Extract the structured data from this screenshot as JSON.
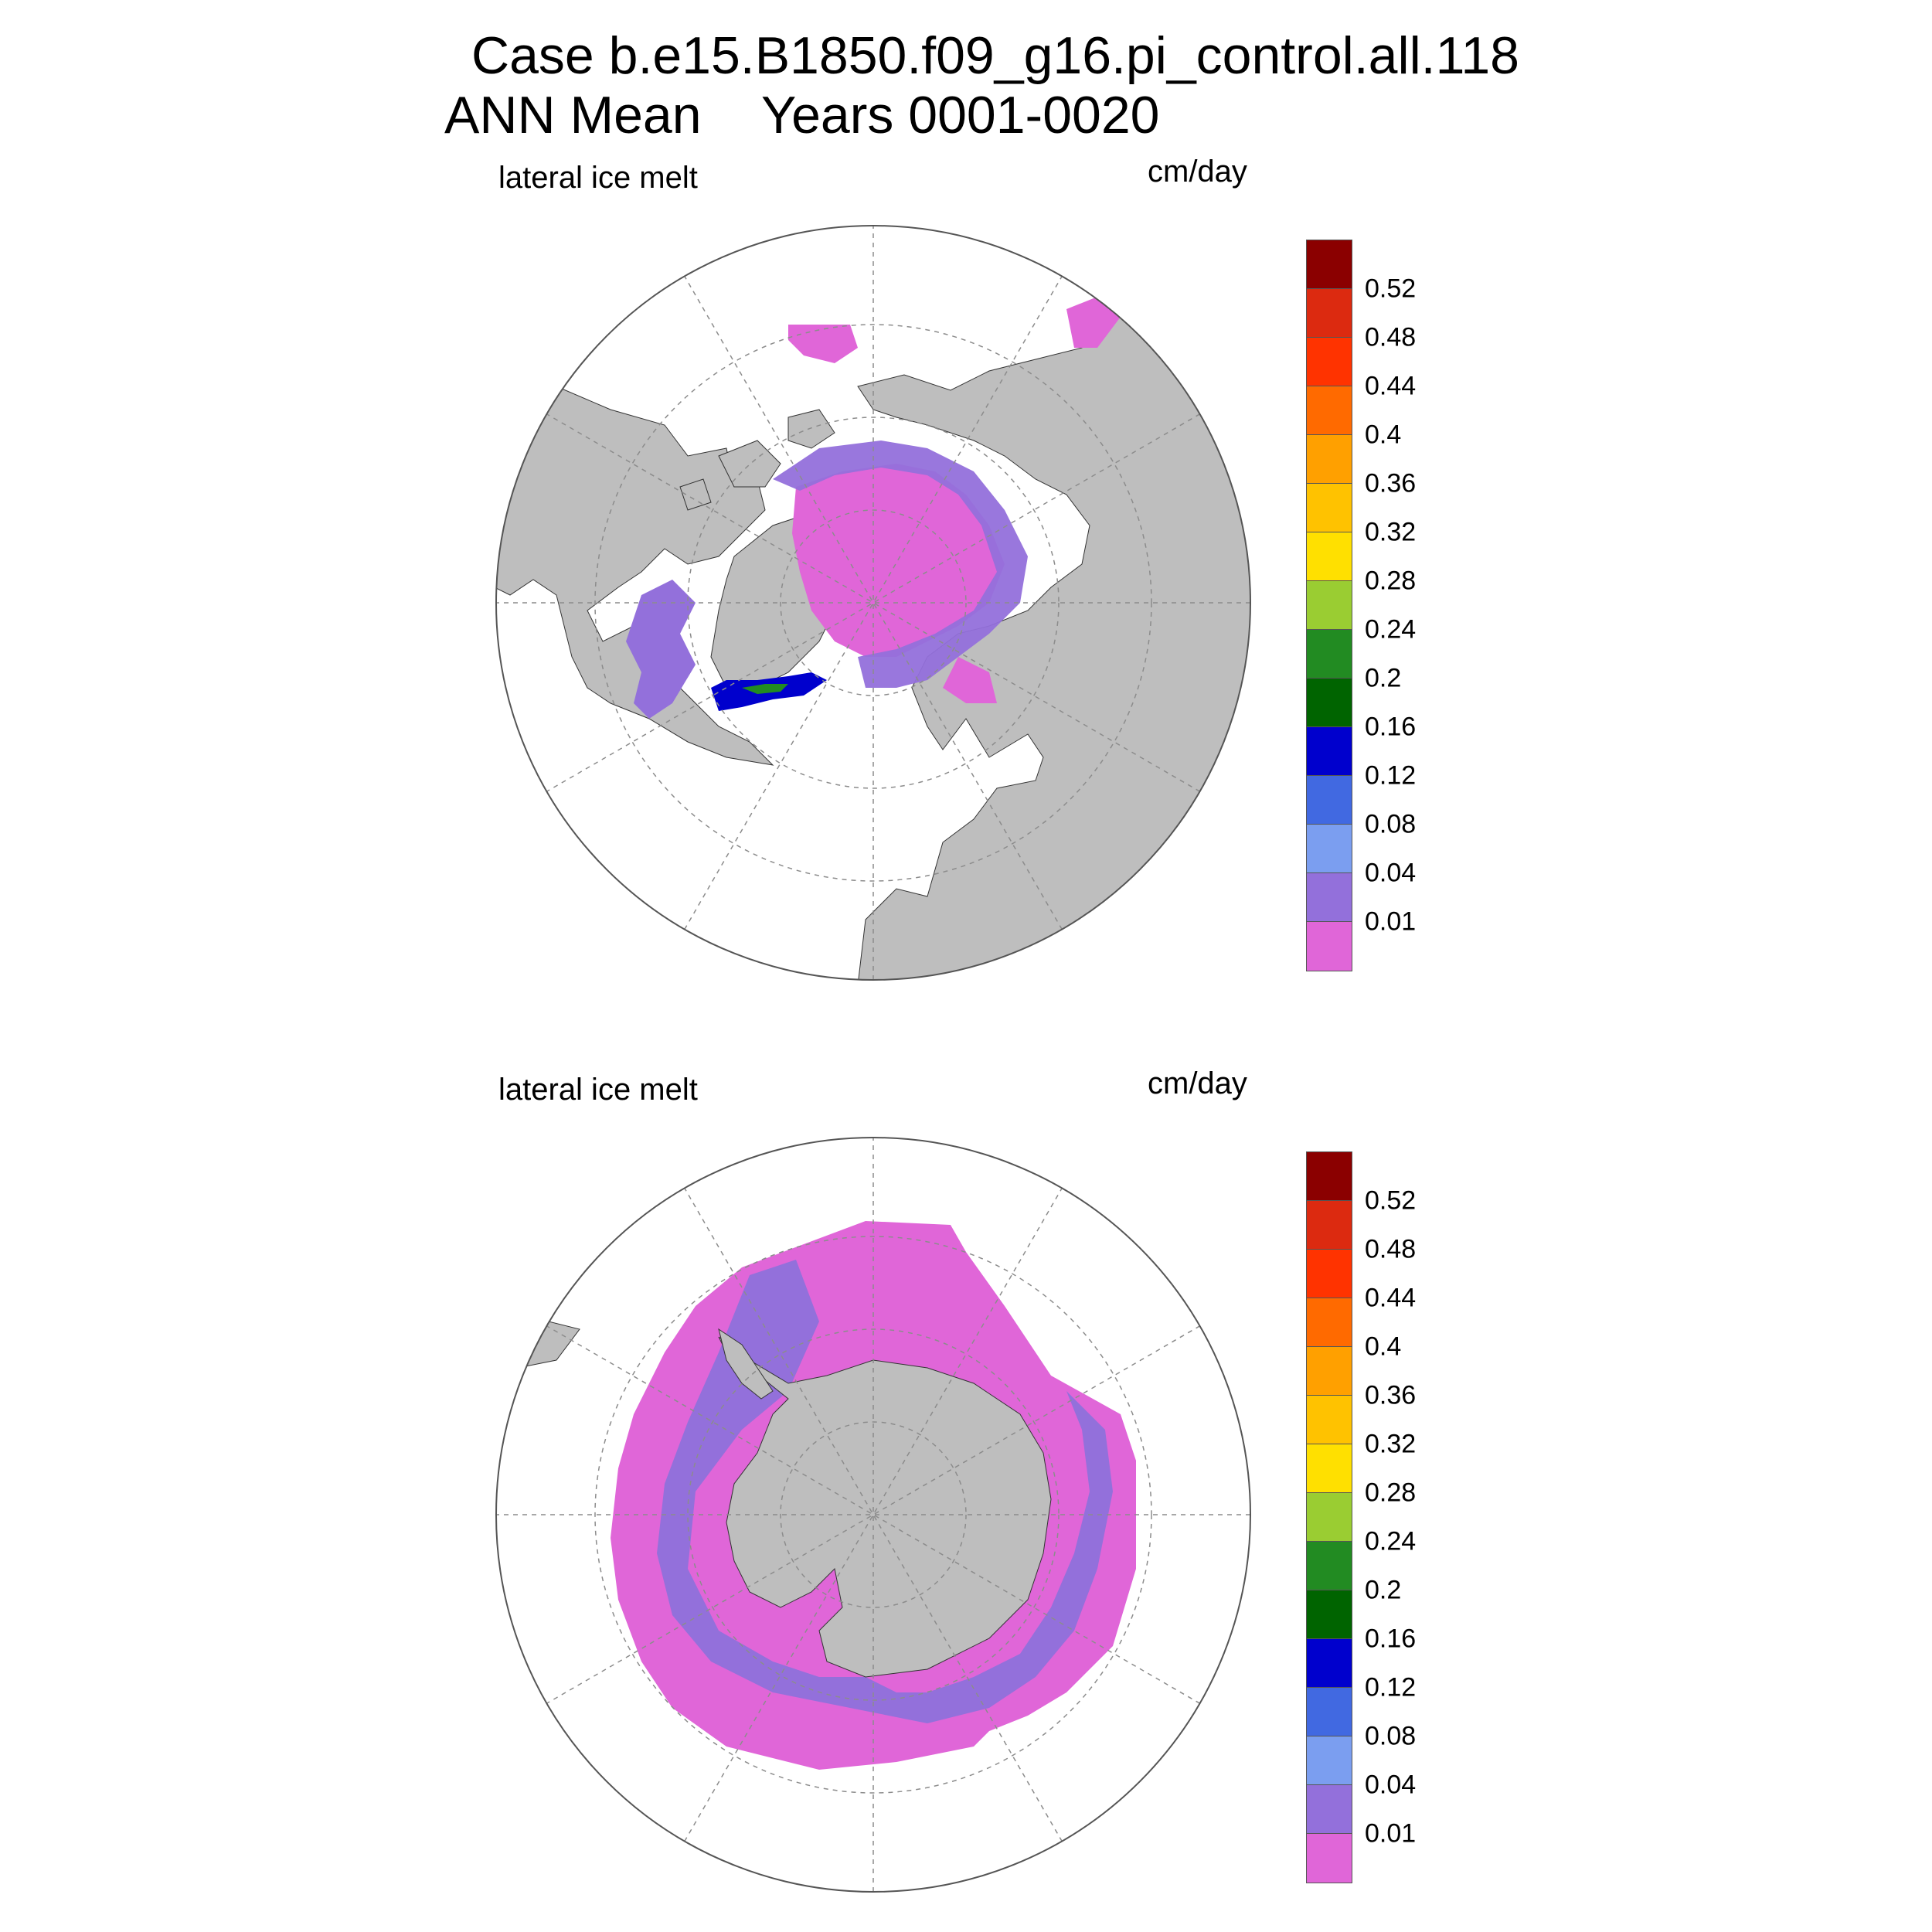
{
  "title": {
    "line1": "Case b.e15.B1850.f09_g16.pi_control.all.118",
    "line2_left": "ANN Mean",
    "line2_right": "Years 0001-0020"
  },
  "colors": {
    "land": "#bebebe",
    "ocean": "#ffffff",
    "grid": "#8c8c8c",
    "bins": [
      "#e066d8",
      "#9370db",
      "#7b9ef0",
      "#4169e1",
      "#0000cd",
      "#006400",
      "#228b22",
      "#9acd32",
      "#ffe000",
      "#ffc200",
      "#ffa000",
      "#ff6a00",
      "#ff3300",
      "#dc2a10",
      "#8b0000"
    ]
  },
  "colorbar": {
    "levels": [
      "0.52",
      "0.48",
      "0.44",
      "0.4",
      "0.36",
      "0.32",
      "0.28",
      "0.24",
      "0.2",
      "0.16",
      "0.12",
      "0.08",
      "0.04",
      "0.01"
    ]
  },
  "panels": [
    {
      "id": "north",
      "variable": "lateral ice melt",
      "units": "cm/day",
      "hemisphere": "northern"
    },
    {
      "id": "south",
      "variable": "lateral ice melt",
      "units": "cm/day",
      "hemisphere": "southern"
    }
  ]
}
